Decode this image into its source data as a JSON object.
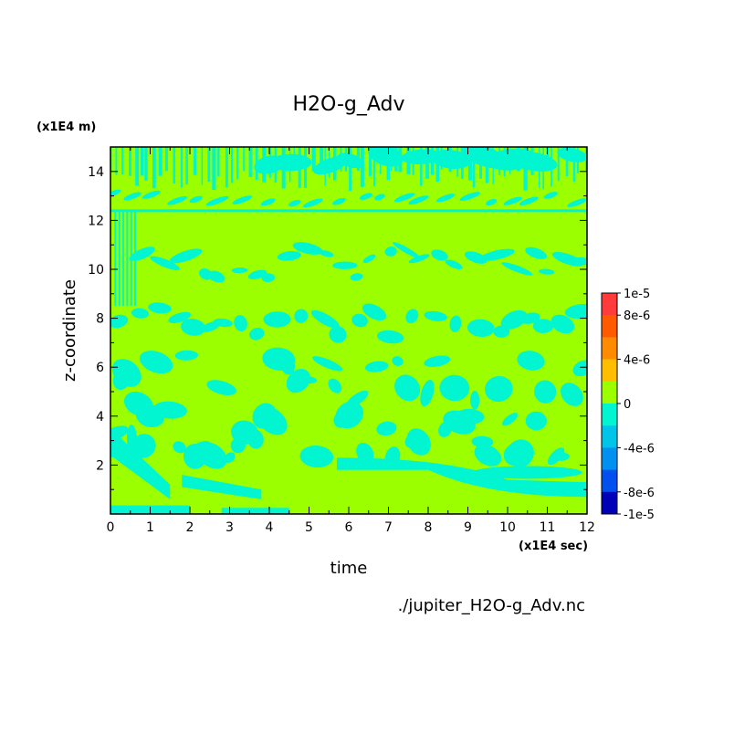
{
  "chart_data": {
    "type": "heatmap",
    "title": "H2O-g_Adv",
    "xlabel": "time",
    "ylabel": "z-coordinate",
    "x_unit": "(x1E4 sec)",
    "y_unit": "(x1E4 m)",
    "source_file": "./jupiter_H2O-g_Adv.nc",
    "xlim": [
      0,
      12
    ],
    "ylim": [
      0,
      15
    ],
    "x_ticks": [
      "0",
      "1",
      "2",
      "3",
      "4",
      "5",
      "6",
      "7",
      "8",
      "9",
      "10",
      "11",
      "12"
    ],
    "y_ticks": [
      "2",
      "4",
      "6",
      "8",
      "10",
      "12",
      "14"
    ],
    "colorbar": {
      "labels": [
        "1e-5",
        "8e-6",
        "4e-6",
        "0",
        "-4e-6",
        "-8e-6",
        "-1e-5"
      ],
      "levels": [
        {
          "range": [
            8e-06,
            1e-05
          ],
          "color": "#ff3b3b"
        },
        {
          "range": [
            6e-06,
            8e-06
          ],
          "color": "#ff5a00"
        },
        {
          "range": [
            4e-06,
            6e-06
          ],
          "color": "#ff8c00"
        },
        {
          "range": [
            2e-06,
            4e-06
          ],
          "color": "#ffbf00"
        },
        {
          "range": [
            0,
            2e-06
          ],
          "color": "#9cff00"
        },
        {
          "range": [
            -2e-06,
            0
          ],
          "color": "#00f5d0"
        },
        {
          "range": [
            -4e-06,
            -2e-06
          ],
          "color": "#00c5e8"
        },
        {
          "range": [
            -6e-06,
            -4e-06
          ],
          "color": "#0090f0"
        },
        {
          "range": [
            -8e-06,
            -6e-06
          ],
          "color": "#0050f0"
        },
        {
          "range": [
            -1e-05,
            -8e-06
          ],
          "color": "#0000b8"
        }
      ]
    },
    "dominant_value_color": "#9cff00",
    "negative_value_color": "#00f5d0"
  }
}
